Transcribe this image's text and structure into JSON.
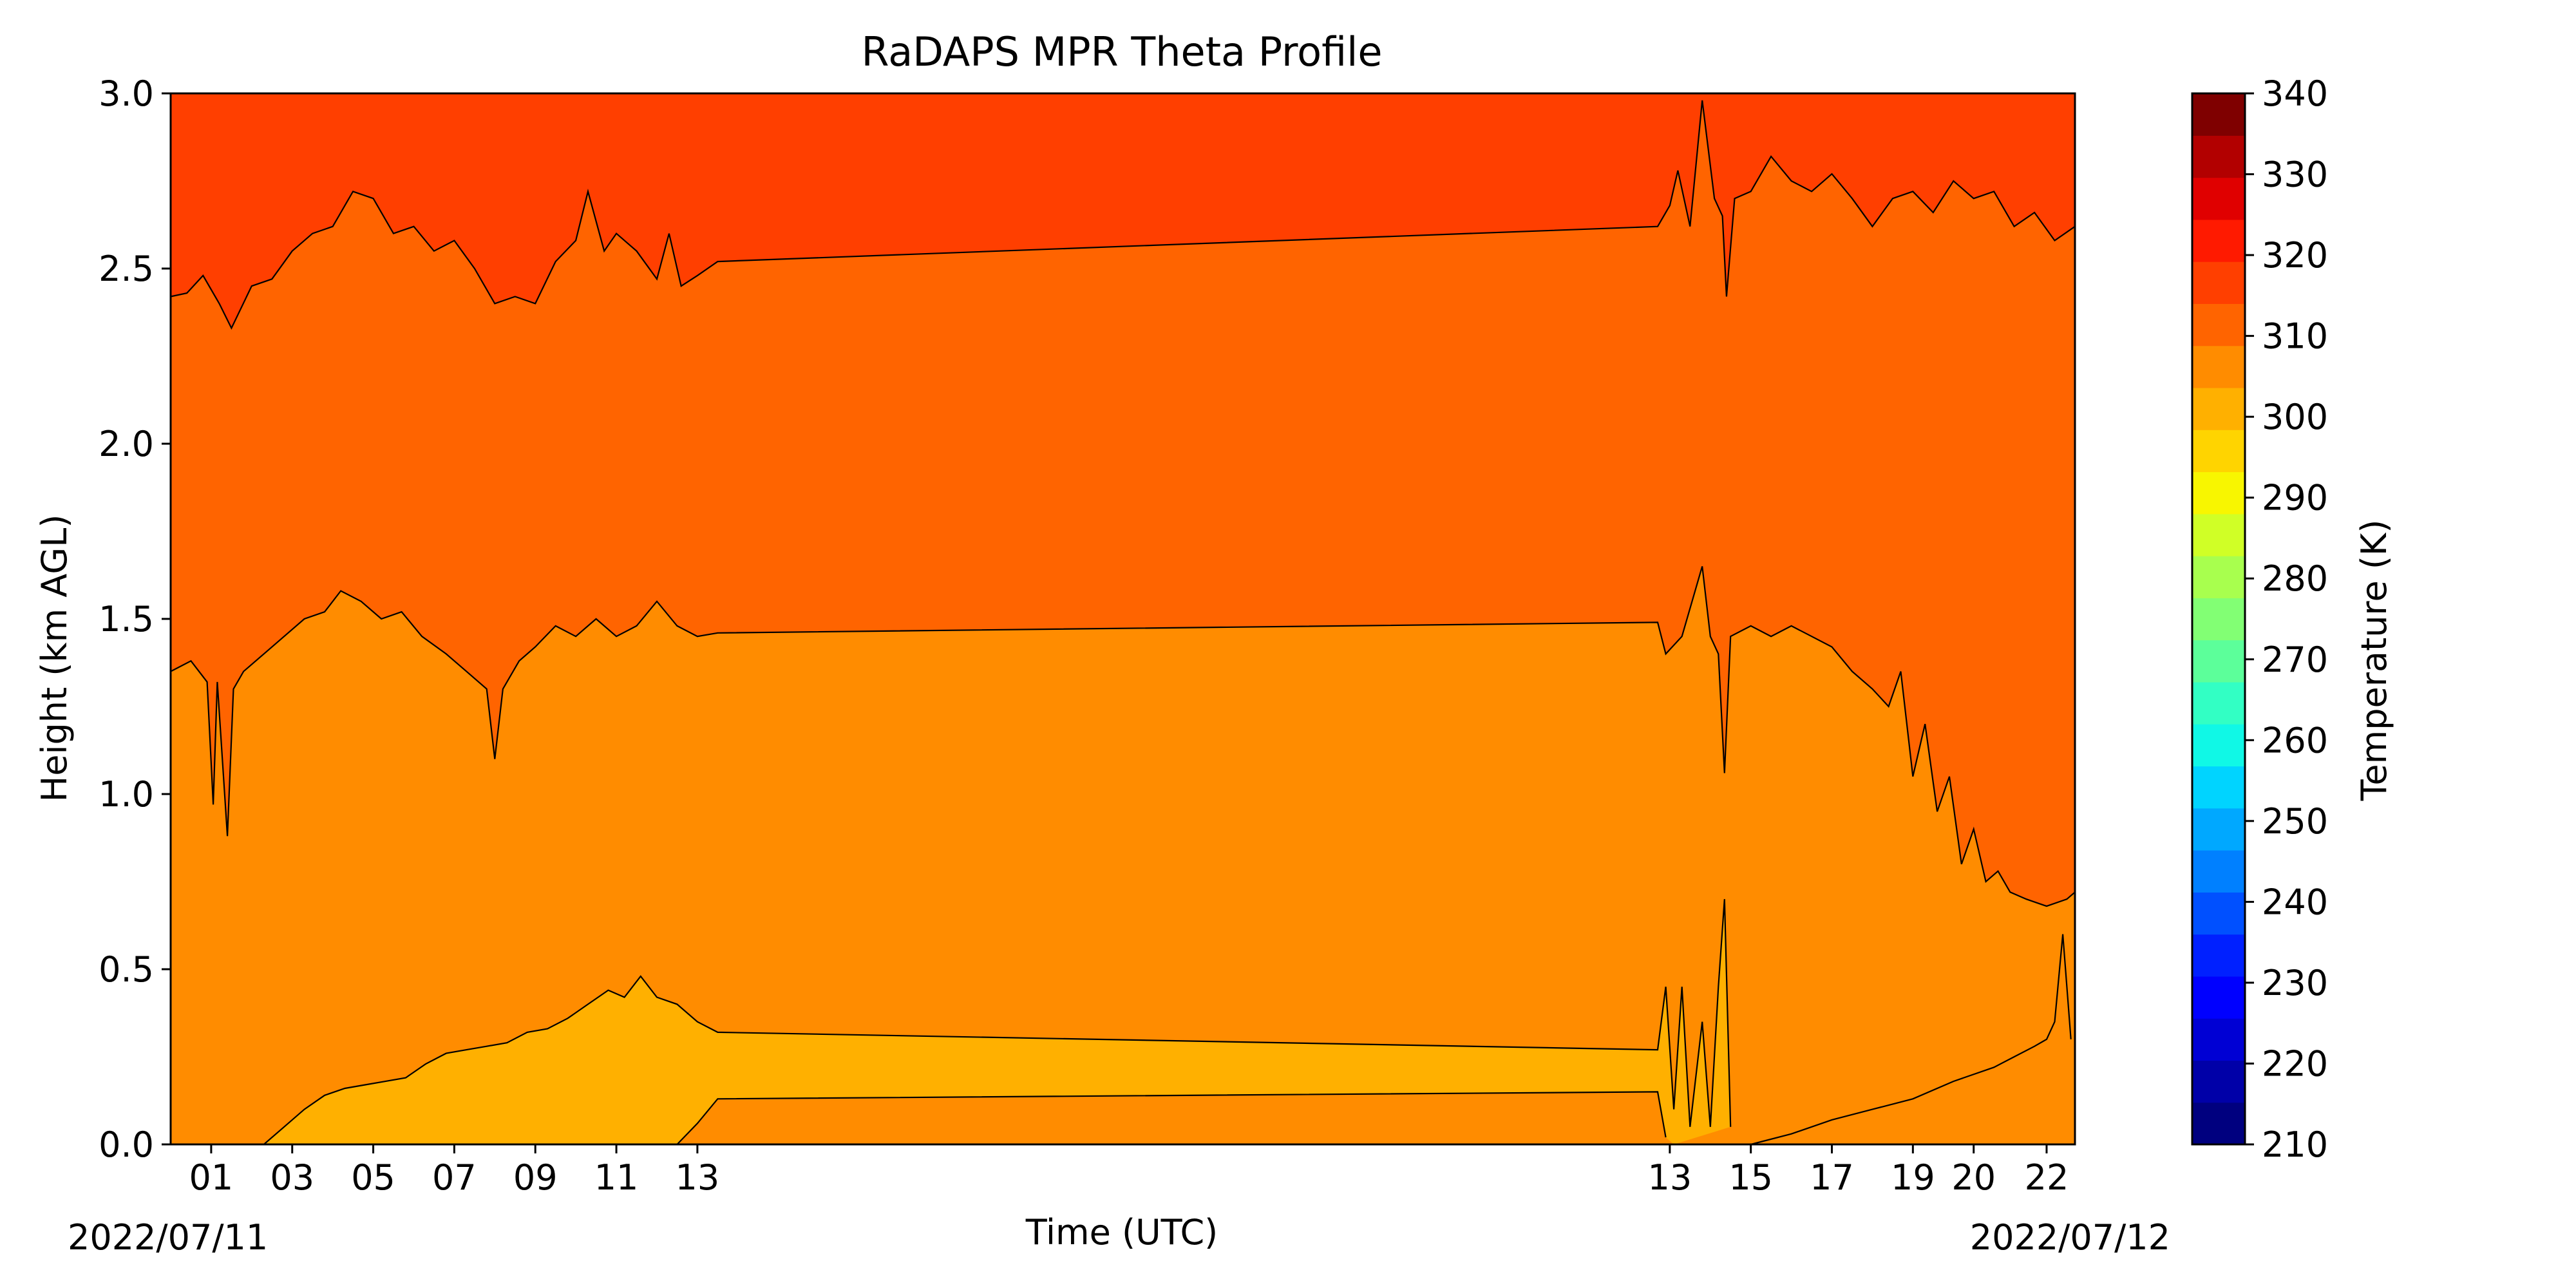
{
  "chart_data": {
    "type": "heatmap",
    "title": "RaDAPS MPR Theta Profile",
    "xlabel": "Time (UTC)",
    "ylabel": "Height (km AGL)",
    "date_start_label": "2022/07/11",
    "date_end_label": "2022/07/12",
    "x_tick_labels": [
      "01",
      "03",
      "05",
      "07",
      "09",
      "11",
      "13",
      "13",
      "15",
      "17",
      "19",
      "20",
      "22"
    ],
    "y_ticks": [
      "0.0",
      "0.5",
      "1.0",
      "1.5",
      "2.0",
      "2.5",
      "3.0"
    ],
    "ylim": [
      0,
      3
    ],
    "colorbar": {
      "label": "Temperature (K)",
      "range": [
        210,
        340
      ],
      "step": 5,
      "tick_labels": [
        "210",
        "220",
        "230",
        "240",
        "250",
        "260",
        "270",
        "280",
        "290",
        "300",
        "310",
        "320",
        "330",
        "340"
      ],
      "colors": [
        "#00007f",
        "#0000a8",
        "#0000d4",
        "#0000ff",
        "#0020ff",
        "#0050ff",
        "#0080ff",
        "#00a8ff",
        "#00d4ff",
        "#10f8e6",
        "#32ffc4",
        "#5cff9a",
        "#82ff74",
        "#a8ff4e",
        "#d0ff26",
        "#f8f600",
        "#ffd400",
        "#ffb000",
        "#ff8c00",
        "#ff6400",
        "#ff3f00",
        "#ff1a00",
        "#e00000",
        "#b20000",
        "#7f0000"
      ]
    },
    "contour_levels_K": [
      300,
      305,
      310
    ],
    "theta_contours_km": [
      {
        "name": "310",
        "segments": [
          [
            [
              0.0,
              2.42
            ],
            [
              0.4,
              2.43
            ],
            [
              0.8,
              2.48
            ],
            [
              1.2,
              2.4
            ],
            [
              1.5,
              2.33
            ],
            [
              2.0,
              2.45
            ],
            [
              2.5,
              2.47
            ],
            [
              3.0,
              2.55
            ],
            [
              3.5,
              2.6
            ],
            [
              4.0,
              2.62
            ],
            [
              4.5,
              2.72
            ],
            [
              5.0,
              2.7
            ],
            [
              5.5,
              2.6
            ],
            [
              6.0,
              2.62
            ],
            [
              6.5,
              2.55
            ],
            [
              7.0,
              2.58
            ],
            [
              7.5,
              2.5
            ],
            [
              8.0,
              2.4
            ],
            [
              8.5,
              2.42
            ],
            [
              9.0,
              2.4
            ],
            [
              9.5,
              2.52
            ],
            [
              10.0,
              2.58
            ],
            [
              10.3,
              2.72
            ],
            [
              10.7,
              2.55
            ],
            [
              11.0,
              2.6
            ],
            [
              11.5,
              2.55
            ],
            [
              12.0,
              2.47
            ],
            [
              12.3,
              2.6
            ],
            [
              12.6,
              2.45
            ],
            [
              13.0,
              2.48
            ],
            [
              13.5,
              2.52
            ],
            [
              36.7,
              2.62
            ],
            [
              37.0,
              2.68
            ],
            [
              37.2,
              2.78
            ],
            [
              37.5,
              2.62
            ],
            [
              37.8,
              2.98
            ],
            [
              38.1,
              2.7
            ],
            [
              38.3,
              2.65
            ],
            [
              38.4,
              2.42
            ],
            [
              38.6,
              2.7
            ],
            [
              39.0,
              2.72
            ],
            [
              39.5,
              2.82
            ],
            [
              40.0,
              2.75
            ],
            [
              40.5,
              2.72
            ],
            [
              41.0,
              2.77
            ],
            [
              41.5,
              2.7
            ],
            [
              42.0,
              2.62
            ],
            [
              42.5,
              2.7
            ],
            [
              43.0,
              2.72
            ],
            [
              43.5,
              2.66
            ],
            [
              44.0,
              2.75
            ],
            [
              44.5,
              2.7
            ],
            [
              45.0,
              2.72
            ],
            [
              45.5,
              2.62
            ],
            [
              46.0,
              2.66
            ],
            [
              46.5,
              2.58
            ],
            [
              47.0,
              2.62
            ]
          ]
        ]
      },
      {
        "name": "305",
        "segments": [
          [
            [
              0.0,
              1.35
            ],
            [
              0.5,
              1.38
            ],
            [
              0.9,
              1.32
            ],
            [
              1.05,
              0.97
            ],
            [
              1.15,
              1.32
            ],
            [
              1.4,
              0.88
            ],
            [
              1.55,
              1.3
            ],
            [
              1.8,
              1.35
            ],
            [
              2.3,
              1.4
            ],
            [
              2.8,
              1.45
            ],
            [
              3.3,
              1.5
            ],
            [
              3.8,
              1.52
            ],
            [
              4.2,
              1.58
            ],
            [
              4.7,
              1.55
            ],
            [
              5.2,
              1.5
            ],
            [
              5.7,
              1.52
            ],
            [
              6.2,
              1.45
            ],
            [
              6.8,
              1.4
            ],
            [
              7.3,
              1.35
            ],
            [
              7.8,
              1.3
            ],
            [
              8.0,
              1.1
            ],
            [
              8.2,
              1.3
            ],
            [
              8.6,
              1.38
            ],
            [
              9.0,
              1.42
            ],
            [
              9.5,
              1.48
            ],
            [
              10.0,
              1.45
            ],
            [
              10.5,
              1.5
            ],
            [
              11.0,
              1.45
            ],
            [
              11.5,
              1.48
            ],
            [
              12.0,
              1.55
            ],
            [
              12.5,
              1.48
            ],
            [
              13.0,
              1.45
            ],
            [
              13.5,
              1.46
            ],
            [
              36.7,
              1.49
            ],
            [
              36.9,
              1.4
            ],
            [
              37.3,
              1.45
            ],
            [
              37.8,
              1.65
            ],
            [
              38.0,
              1.45
            ],
            [
              38.2,
              1.4
            ],
            [
              38.35,
              1.06
            ],
            [
              38.5,
              1.45
            ],
            [
              39.0,
              1.48
            ],
            [
              39.5,
              1.45
            ],
            [
              40.0,
              1.48
            ],
            [
              40.5,
              1.45
            ],
            [
              41.0,
              1.42
            ],
            [
              41.5,
              1.35
            ],
            [
              42.0,
              1.3
            ],
            [
              42.4,
              1.25
            ],
            [
              42.7,
              1.35
            ],
            [
              43.0,
              1.05
            ],
            [
              43.3,
              1.2
            ],
            [
              43.6,
              0.95
            ],
            [
              43.9,
              1.05
            ],
            [
              44.2,
              0.8
            ],
            [
              44.5,
              0.9
            ],
            [
              44.8,
              0.75
            ],
            [
              45.1,
              0.78
            ],
            [
              45.4,
              0.72
            ],
            [
              45.8,
              0.7
            ],
            [
              46.3,
              0.68
            ],
            [
              46.8,
              0.7
            ],
            [
              47.0,
              0.72
            ]
          ]
        ]
      },
      {
        "name": "300",
        "segments": [
          [
            [
              2.3,
              0.0
            ],
            [
              2.8,
              0.05
            ],
            [
              3.3,
              0.1
            ],
            [
              3.8,
              0.14
            ],
            [
              4.3,
              0.16
            ],
            [
              4.8,
              0.17
            ],
            [
              5.3,
              0.18
            ],
            [
              5.8,
              0.19
            ],
            [
              6.3,
              0.23
            ],
            [
              6.8,
              0.26
            ],
            [
              7.3,
              0.27
            ],
            [
              7.8,
              0.28
            ],
            [
              8.3,
              0.29
            ],
            [
              8.8,
              0.32
            ],
            [
              9.3,
              0.33
            ],
            [
              9.8,
              0.36
            ],
            [
              10.3,
              0.4
            ],
            [
              10.8,
              0.44
            ],
            [
              11.2,
              0.42
            ],
            [
              11.6,
              0.48
            ],
            [
              12.0,
              0.42
            ],
            [
              12.5,
              0.4
            ],
            [
              13.0,
              0.35
            ],
            [
              13.5,
              0.32
            ],
            [
              36.7,
              0.27
            ],
            [
              36.9,
              0.45
            ],
            [
              37.1,
              0.1
            ],
            [
              37.3,
              0.45
            ],
            [
              37.5,
              0.05
            ],
            [
              37.8,
              0.35
            ],
            [
              38.0,
              0.05
            ],
            [
              38.2,
              0.45
            ],
            [
              38.35,
              0.7
            ],
            [
              38.5,
              0.05
            ]
          ],
          [
            [
              12.5,
              0.0
            ],
            [
              13.0,
              0.06
            ],
            [
              13.5,
              0.13
            ],
            [
              36.7,
              0.15
            ],
            [
              36.9,
              0.02
            ]
          ],
          [
            [
              39.0,
              0.0
            ],
            [
              40.0,
              0.03
            ],
            [
              41.0,
              0.07
            ],
            [
              42.0,
              0.1
            ],
            [
              43.0,
              0.13
            ],
            [
              44.0,
              0.18
            ],
            [
              45.0,
              0.22
            ],
            [
              45.5,
              0.25
            ],
            [
              46.0,
              0.28
            ],
            [
              46.3,
              0.3
            ],
            [
              46.5,
              0.35
            ],
            [
              46.7,
              0.6
            ],
            [
              46.8,
              0.45
            ],
            [
              46.9,
              0.3
            ]
          ]
        ]
      }
    ]
  }
}
